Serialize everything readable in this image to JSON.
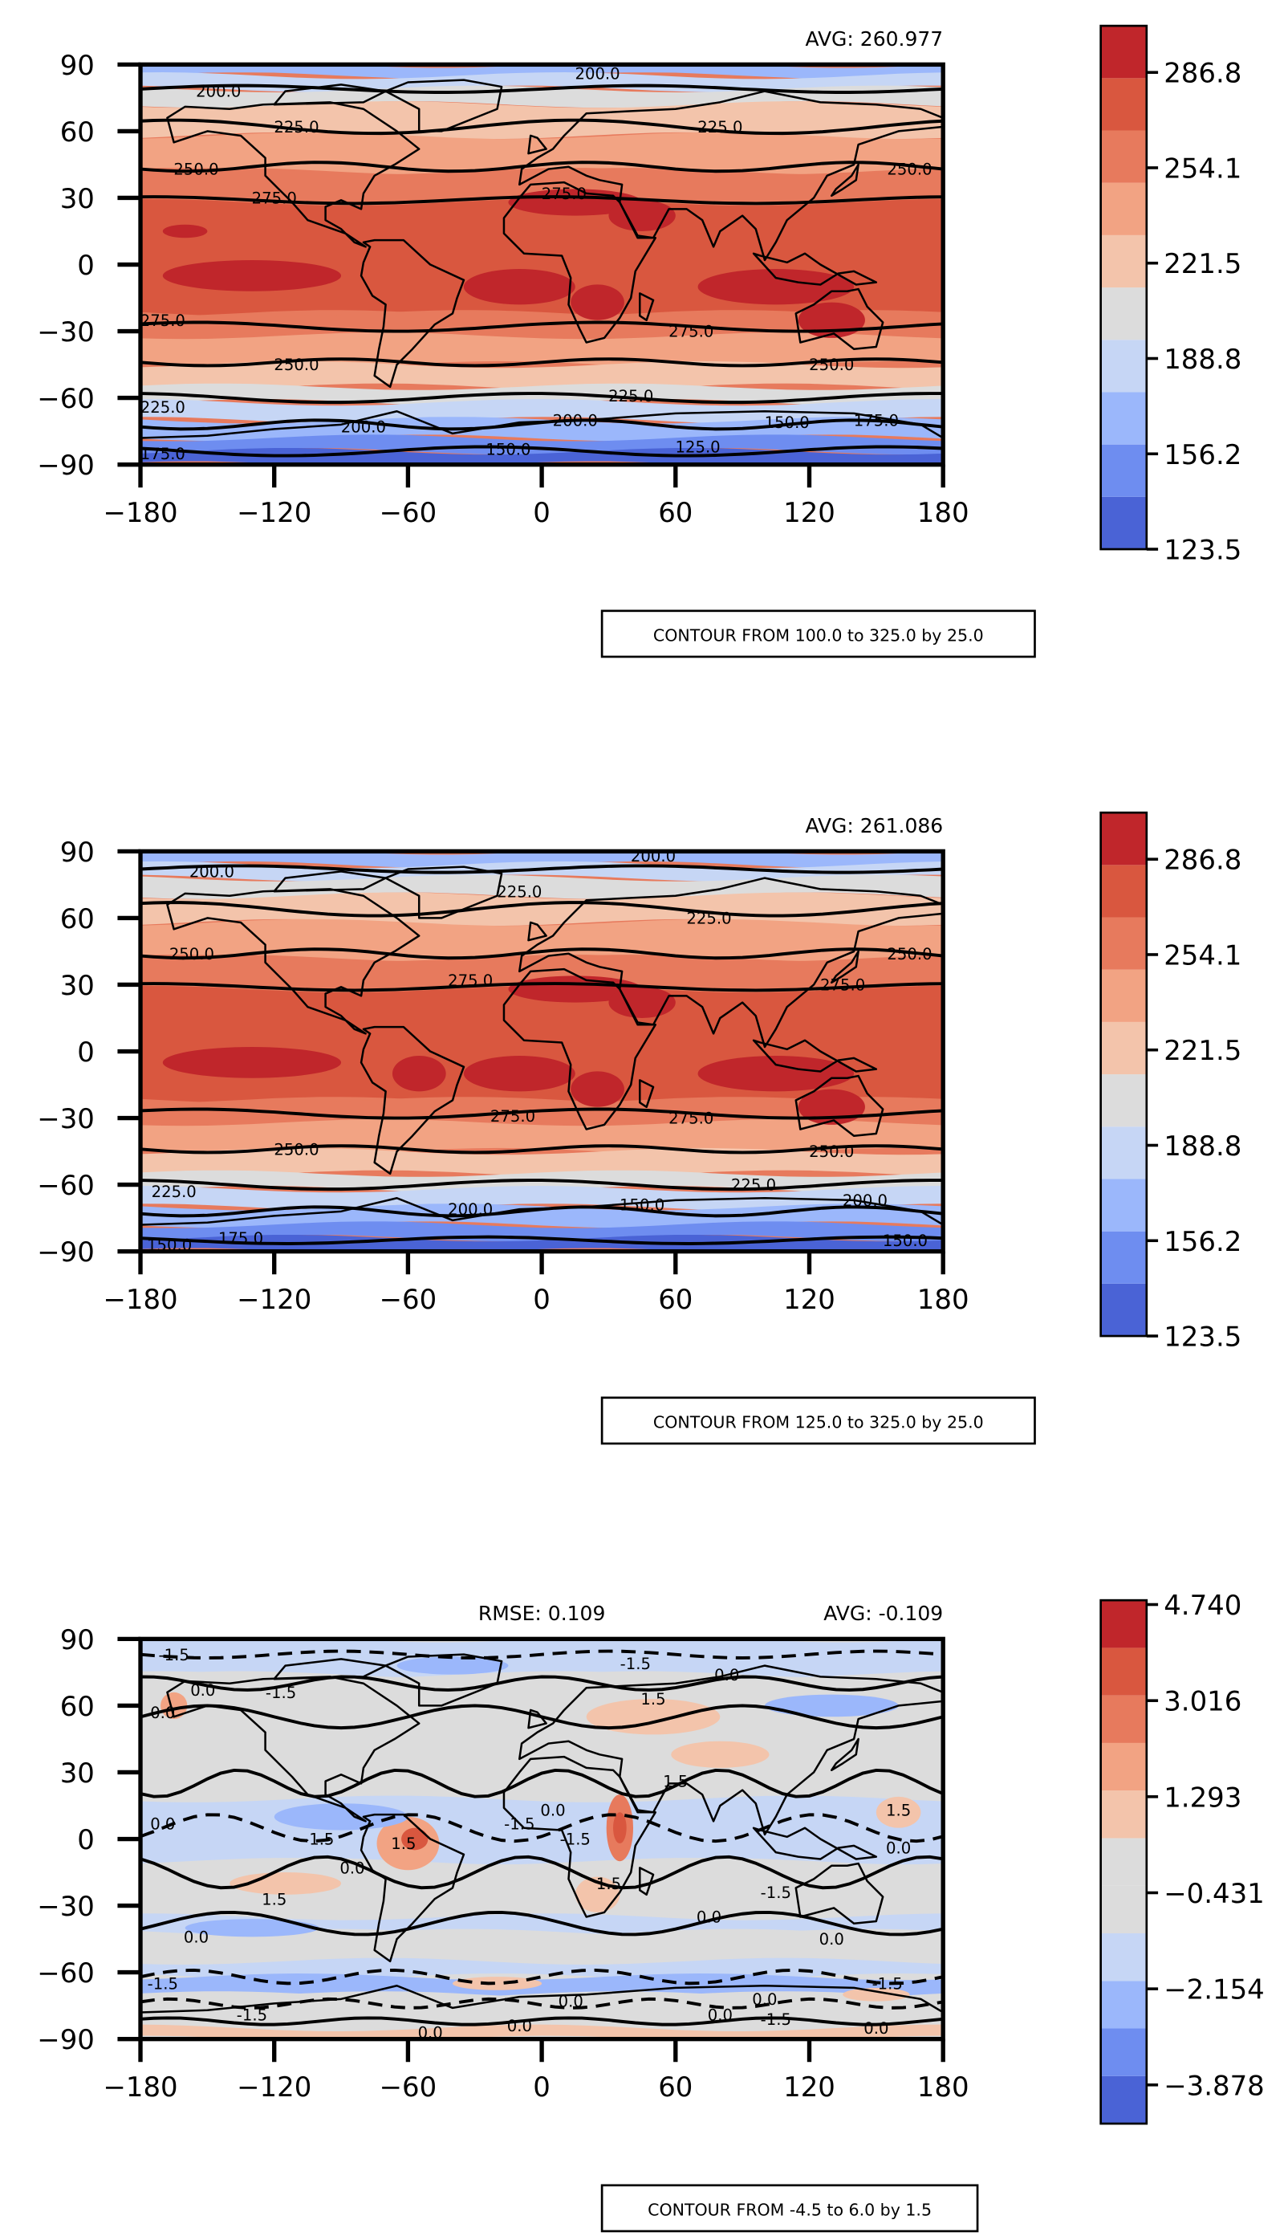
{
  "chart_data": [
    {
      "type": "contour-map",
      "avg_label": "AVG: 260.977",
      "rmse_label": "",
      "x_ticks": [
        -180,
        -120,
        -60,
        0,
        60,
        120,
        180
      ],
      "y_ticks": [
        -90,
        -60,
        -30,
        0,
        30,
        60,
        90
      ],
      "x_tick_labels": [
        "−180",
        "−120",
        "−60",
        "0",
        "60",
        "120",
        "180"
      ],
      "y_tick_labels": [
        "−90",
        "−60",
        "−30",
        "0",
        "30",
        "60",
        "90"
      ],
      "xlim": [
        -180,
        180
      ],
      "ylim": [
        -90,
        90
      ],
      "colorbar_ticks": [
        "123.5",
        "156.2",
        "188.8",
        "221.5",
        "254.1",
        "286.8"
      ],
      "colorbar_colors": [
        "#4a63d6",
        "#6e8df0",
        "#9bb7fb",
        "#c6d6f5",
        "#dcdcdc",
        "#f3c4ab",
        "#f2a383",
        "#e77a5d",
        "#d9573f",
        "#c0262b"
      ],
      "contour_note": "CONTOUR FROM 100.0 to 325.0 by 25.0",
      "contour_labels": [
        {
          "text": "200.0",
          "lon": -145,
          "lat": 78
        },
        {
          "text": "200.0",
          "lon": 25,
          "lat": 86
        },
        {
          "text": "225.0",
          "lon": -110,
          "lat": 62
        },
        {
          "text": "225.0",
          "lon": 80,
          "lat": 62
        },
        {
          "text": "250.0",
          "lon": -155,
          "lat": 43
        },
        {
          "text": "250.0",
          "lon": 165,
          "lat": 43
        },
        {
          "text": "275.0",
          "lon": -120,
          "lat": 30
        },
        {
          "text": "275.0",
          "lon": 10,
          "lat": 32
        },
        {
          "text": "275.0",
          "lon": -170,
          "lat": -25
        },
        {
          "text": "275.0",
          "lon": 67,
          "lat": -30
        },
        {
          "text": "250.0",
          "lon": -110,
          "lat": -45
        },
        {
          "text": "250.0",
          "lon": 130,
          "lat": -45
        },
        {
          "text": "225.0",
          "lon": -170,
          "lat": -64
        },
        {
          "text": "225.0",
          "lon": 40,
          "lat": -59
        },
        {
          "text": "200.0",
          "lon": -80,
          "lat": -73
        },
        {
          "text": "200.0",
          "lon": 15,
          "lat": -70
        },
        {
          "text": "150.0",
          "lon": 110,
          "lat": -71
        },
        {
          "text": "175.0",
          "lon": 150,
          "lat": -70
        },
        {
          "text": "175.0",
          "lon": -170,
          "lat": -85
        },
        {
          "text": "150.0",
          "lon": -15,
          "lat": -83
        },
        {
          "text": "125.0",
          "lon": 70,
          "lat": -82
        }
      ]
    },
    {
      "type": "contour-map",
      "avg_label": "AVG: 261.086",
      "rmse_label": "",
      "x_ticks": [
        -180,
        -120,
        -60,
        0,
        60,
        120,
        180
      ],
      "y_ticks": [
        -90,
        -60,
        -30,
        0,
        30,
        60,
        90
      ],
      "x_tick_labels": [
        "−180",
        "−120",
        "−60",
        "0",
        "60",
        "120",
        "180"
      ],
      "y_tick_labels": [
        "−90",
        "−60",
        "−30",
        "0",
        "30",
        "60",
        "90"
      ],
      "xlim": [
        -180,
        180
      ],
      "ylim": [
        -90,
        90
      ],
      "colorbar_ticks": [
        "123.5",
        "156.2",
        "188.8",
        "221.5",
        "254.1",
        "286.8"
      ],
      "colorbar_colors": [
        "#4a63d6",
        "#6e8df0",
        "#9bb7fb",
        "#c6d6f5",
        "#dcdcdc",
        "#f3c4ab",
        "#f2a383",
        "#e77a5d",
        "#d9573f",
        "#c0262b"
      ],
      "contour_note": "CONTOUR FROM 125.0 to 325.0 by 25.0",
      "contour_labels": [
        {
          "text": "200.0",
          "lon": -148,
          "lat": 81
        },
        {
          "text": "200.0",
          "lon": 50,
          "lat": 88
        },
        {
          "text": "225.0",
          "lon": -10,
          "lat": 72
        },
        {
          "text": "225.0",
          "lon": 75,
          "lat": 60
        },
        {
          "text": "250.0",
          "lon": -157,
          "lat": 44
        },
        {
          "text": "250.0",
          "lon": 165,
          "lat": 44
        },
        {
          "text": "275.0",
          "lon": -32,
          "lat": 32
        },
        {
          "text": "275.0",
          "lon": 135,
          "lat": 30
        },
        {
          "text": "275.0",
          "lon": -13,
          "lat": -29
        },
        {
          "text": "275.0",
          "lon": 67,
          "lat": -30
        },
        {
          "text": "250.0",
          "lon": -110,
          "lat": -44
        },
        {
          "text": "250.0",
          "lon": 130,
          "lat": -45
        },
        {
          "text": "225.0",
          "lon": -165,
          "lat": -63
        },
        {
          "text": "225.0",
          "lon": 95,
          "lat": -60
        },
        {
          "text": "200.0",
          "lon": -32,
          "lat": -71
        },
        {
          "text": "150.0",
          "lon": 45,
          "lat": -69
        },
        {
          "text": "200.0",
          "lon": 145,
          "lat": -67
        },
        {
          "text": "150.0",
          "lon": -167,
          "lat": -87
        },
        {
          "text": "175.0",
          "lon": -135,
          "lat": -84
        },
        {
          "text": "150.0",
          "lon": 163,
          "lat": -85
        }
      ]
    },
    {
      "type": "contour-map",
      "avg_label": "AVG: -0.109",
      "rmse_label": "RMSE: 0.109",
      "x_ticks": [
        -180,
        -120,
        -60,
        0,
        60,
        120,
        180
      ],
      "y_ticks": [
        -90,
        -60,
        -30,
        0,
        30,
        60,
        90
      ],
      "x_tick_labels": [
        "−180",
        "−120",
        "−60",
        "0",
        "60",
        "120",
        "180"
      ],
      "y_tick_labels": [
        "−90",
        "−60",
        "−30",
        "0",
        "30",
        "60",
        "90"
      ],
      "xlim": [
        -180,
        180
      ],
      "ylim": [
        -90,
        90
      ],
      "colorbar_ticks": [
        "4.740",
        "3.016",
        "1.293",
        "−0.431",
        "−2.154",
        "−3.878"
      ],
      "colorbar_colors": [
        "#4a63d6",
        "#6e8df0",
        "#9bb7fb",
        "#c6d6f5",
        "#dcdcdc",
        "#dcdcdc",
        "#f3c4ab",
        "#f2a383",
        "#e77a5d",
        "#d9573f",
        "#c0262b"
      ],
      "contour_note": "CONTOUR FROM -4.5 to 6.0 by 1.5",
      "contour_labels": [
        {
          "text": "-1.5",
          "lon": -165,
          "lat": 83
        },
        {
          "text": "-1.5",
          "lon": 42,
          "lat": 79
        },
        {
          "text": "0.0",
          "lon": -152,
          "lat": 67
        },
        {
          "text": "0.0",
          "lon": 83,
          "lat": 74
        },
        {
          "text": "0.0",
          "lon": -170,
          "lat": 57
        },
        {
          "text": "-1.5",
          "lon": -117,
          "lat": 66
        },
        {
          "text": "1.5",
          "lon": 50,
          "lat": 63
        },
        {
          "text": "1.5",
          "lon": 60,
          "lat": 26
        },
        {
          "text": "1.5",
          "lon": 160,
          "lat": 13
        },
        {
          "text": "0.0",
          "lon": 160,
          "lat": -4
        },
        {
          "text": "0.0",
          "lon": -170,
          "lat": 7
        },
        {
          "text": "-1.5",
          "lon": -100,
          "lat": 0
        },
        {
          "text": "0.0",
          "lon": -85,
          "lat": -13
        },
        {
          "text": "1.5",
          "lon": -62,
          "lat": -2
        },
        {
          "text": "-1.5",
          "lon": -10,
          "lat": 7
        },
        {
          "text": "0.0",
          "lon": 5,
          "lat": 13
        },
        {
          "text": "-1.5",
          "lon": 15,
          "lat": 0
        },
        {
          "text": "1.5",
          "lon": 30,
          "lat": -20
        },
        {
          "text": "-1.5",
          "lon": 105,
          "lat": -24
        },
        {
          "text": "1.5",
          "lon": -120,
          "lat": -27
        },
        {
          "text": "0.0",
          "lon": 75,
          "lat": -35
        },
        {
          "text": "0.0",
          "lon": 130,
          "lat": -45
        },
        {
          "text": "0.0",
          "lon": -155,
          "lat": -44
        },
        {
          "text": "-1.5",
          "lon": -170,
          "lat": -65
        },
        {
          "text": "-1.5",
          "lon": 155,
          "lat": -65
        },
        {
          "text": "-1.5",
          "lon": -130,
          "lat": -79
        },
        {
          "text": "0.0",
          "lon": 13,
          "lat": -73
        },
        {
          "text": "0.0",
          "lon": 100,
          "lat": -72
        },
        {
          "text": "0.0",
          "lon": 80,
          "lat": -79
        },
        {
          "text": "-1.5",
          "lon": 105,
          "lat": -81
        },
        {
          "text": "0.0",
          "lon": -10,
          "lat": -84
        },
        {
          "text": "0.0",
          "lon": -50,
          "lat": -87
        },
        {
          "text": "0.0",
          "lon": 150,
          "lat": -85
        }
      ]
    }
  ]
}
